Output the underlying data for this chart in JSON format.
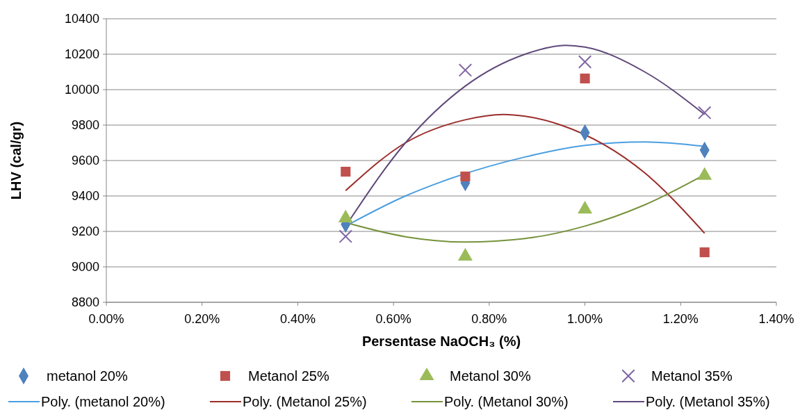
{
  "chart_data": {
    "type": "scatter",
    "xlabel": "Persentase NaOCH₃  (%)",
    "ylabel": "LHV (cal/gr)",
    "xlim": [
      0,
      1.4
    ],
    "xticks": [
      {
        "value": 0,
        "label": "0.00%"
      },
      {
        "value": 0.2,
        "label": "0.20%"
      },
      {
        "value": 0.4,
        "label": "0.40%"
      },
      {
        "value": 0.6,
        "label": "0.60%"
      },
      {
        "value": 0.8,
        "label": "0.80%"
      },
      {
        "value": 1.0,
        "label": "1.00%"
      },
      {
        "value": 1.2,
        "label": "1.20%"
      },
      {
        "value": 1.4,
        "label": "1.40%"
      }
    ],
    "ylim": [
      8800,
      10400
    ],
    "yticks": [
      8800,
      9000,
      9200,
      9400,
      9600,
      9800,
      10000,
      10200,
      10400
    ],
    "grid": "y",
    "legend": "bottom",
    "series": [
      {
        "name": "metanol 20%",
        "marker": "diamond",
        "color": "#4f81bd",
        "x": [
          0.5,
          0.75,
          1.0,
          1.25
        ],
        "values": [
          9240,
          9474,
          9757,
          9659
        ]
      },
      {
        "name": "Metanol 25%",
        "marker": "square",
        "color": "#c0504d",
        "x": [
          0.5,
          0.75,
          1.0,
          1.25
        ],
        "values": [
          9537,
          9510,
          10063,
          9082
        ]
      },
      {
        "name": "Metanol 30%",
        "marker": "triangle",
        "color": "#9bbb59",
        "x": [
          0.5,
          0.75,
          1.0,
          1.25
        ],
        "values": [
          9275,
          9059,
          9325,
          9515
        ]
      },
      {
        "name": "Metanol 35%",
        "marker": "cross",
        "color": "#8064a2",
        "x": [
          0.5,
          0.75,
          1.0,
          1.25
        ],
        "values": [
          9172,
          10110,
          10157,
          9870
        ]
      },
      {
        "name": "Poly. (metanol 20%)",
        "type": "line",
        "marker": "none",
        "color": "#4a9ee0",
        "x": [
          0.5,
          0.625,
          0.7,
          0.875,
          1.0,
          1.125,
          1.25
        ],
        "values": [
          9230,
          9400,
          9480,
          9620,
          9685,
          9705,
          9680
        ]
      },
      {
        "name": "Poly. (Metanol 25%)",
        "type": "line",
        "marker": "none",
        "color": "#9b2d2a",
        "x": [
          0.5,
          0.625,
          0.75,
          0.83,
          0.875,
          0.95,
          1.125,
          1.25
        ],
        "values": [
          9430,
          9700,
          9830,
          9860,
          9850,
          9800,
          9530,
          9190
        ]
      },
      {
        "name": "Poly. (Metanol 30%)",
        "type": "line",
        "marker": "none",
        "color": "#77933c",
        "x": [
          0.5,
          0.625,
          0.75,
          0.875,
          1.0,
          1.125,
          1.25
        ],
        "values": [
          9250,
          9170,
          9140,
          9160,
          9230,
          9350,
          9520
        ]
      },
      {
        "name": "Poly. (Metanol 35%)",
        "type": "line",
        "marker": "none",
        "color": "#5f497a",
        "x": [
          0.5,
          0.625,
          0.75,
          0.875,
          0.96,
          1.0,
          1.125,
          1.25
        ],
        "values": [
          9230,
          9700,
          10020,
          10200,
          10250,
          10240,
          10100,
          9860
        ]
      }
    ]
  }
}
